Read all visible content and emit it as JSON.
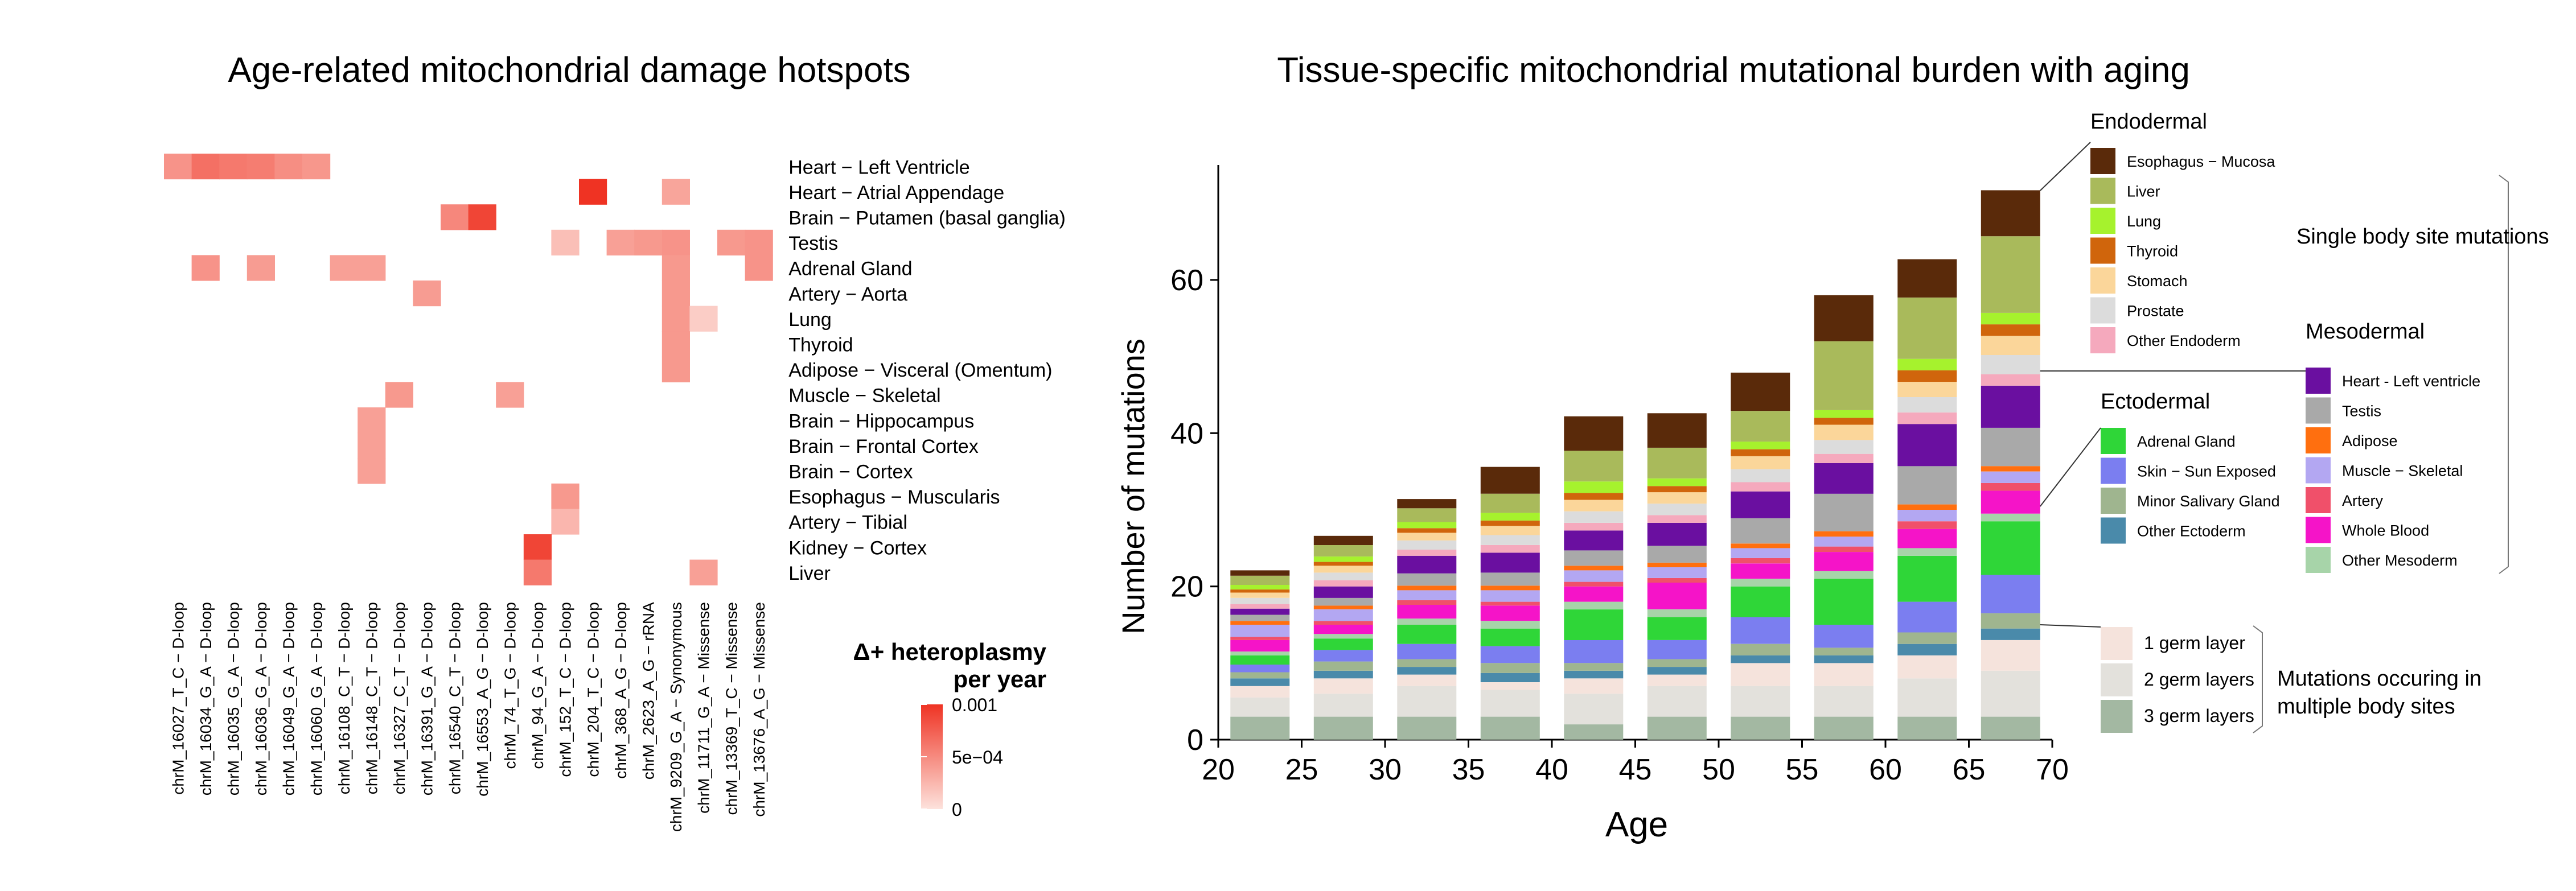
{
  "chart_data": [
    {
      "type": "heatmap",
      "title": "Age-related mitochondrial damage hotspots",
      "rows": [
        "Heart − Left Ventricle",
        "Heart − Atrial Appendage",
        "Brain − Putamen (basal ganglia)",
        "Testis",
        "Adrenal Gland",
        "Artery − Aorta",
        "Lung",
        "Thyroid",
        "Adipose − Visceral (Omentum)",
        "Muscle − Skeletal",
        "Brain − Hippocampus",
        "Brain − Frontal Cortex",
        "Brain − Cortex",
        "Esophagus − Muscularis",
        "Artery − Tibial",
        "Kidney − Cortex",
        "Liver"
      ],
      "columns": [
        "chrM_16027_T_C − D-loop",
        "chrM_16034_G_A − D-loop",
        "chrM_16035_G_A − D-loop",
        "chrM_16036_G_A − D-loop",
        "chrM_16049_G_A − D-loop",
        "chrM_16060_G_A − D-loop",
        "chrM_16108_C_T − D-loop",
        "chrM_16148_C_T − D-loop",
        "chrM_16327_C_T − D-loop",
        "chrM_16391_G_A − D-loop",
        "chrM_16540_C_T − D-loop",
        "chrM_16553_A_G − D-loop",
        "chrM_74_T_G − D-loop",
        "chrM_94_G_A − D-loop",
        "chrM_152_T_C − D-loop",
        "chrM_204_T_C − D-loop",
        "chrM_368_A_G − D-loop",
        "chrM_2623_A_G − rRNA",
        "chrM_9209_G_A − Synonymous",
        "chrM_11711_G_A − Missense",
        "chrM_13369_T_C − Missense",
        "chrM_13676_A_G − Missense"
      ],
      "values": [
        [
          0.00045,
          0.00065,
          0.0006,
          0.00058,
          0.00048,
          0.00043,
          null,
          null,
          null,
          null,
          null,
          null,
          null,
          null,
          null,
          null,
          null,
          null,
          null,
          null,
          null,
          null
        ],
        [
          null,
          null,
          null,
          null,
          null,
          null,
          null,
          null,
          null,
          null,
          null,
          null,
          null,
          null,
          null,
          0.001,
          null,
          null,
          0.00035,
          null,
          null,
          null
        ],
        [
          null,
          null,
          null,
          null,
          null,
          null,
          null,
          null,
          null,
          null,
          0.00052,
          0.0009,
          null,
          null,
          null,
          null,
          null,
          null,
          null,
          null,
          null,
          null
        ],
        [
          null,
          null,
          null,
          null,
          null,
          null,
          null,
          null,
          null,
          null,
          null,
          null,
          null,
          null,
          0.0002,
          null,
          0.00038,
          0.00042,
          0.00045,
          null,
          0.00042,
          0.00045
        ],
        [
          null,
          0.00045,
          null,
          0.0004,
          null,
          null,
          0.00038,
          0.00038,
          null,
          null,
          null,
          null,
          null,
          null,
          null,
          null,
          null,
          null,
          0.00042,
          null,
          null,
          0.00045
        ],
        [
          null,
          null,
          null,
          null,
          null,
          null,
          null,
          null,
          null,
          0.0004,
          null,
          null,
          null,
          null,
          null,
          null,
          null,
          null,
          0.00042,
          null,
          null,
          null
        ],
        [
          null,
          null,
          null,
          null,
          null,
          null,
          null,
          null,
          null,
          null,
          null,
          null,
          null,
          null,
          null,
          null,
          null,
          null,
          0.00042,
          0.00012,
          null,
          null
        ],
        [
          null,
          null,
          null,
          null,
          null,
          null,
          null,
          null,
          null,
          null,
          null,
          null,
          null,
          null,
          null,
          null,
          null,
          null,
          0.00042,
          null,
          null,
          null
        ],
        [
          null,
          null,
          null,
          null,
          null,
          null,
          null,
          null,
          null,
          null,
          null,
          null,
          null,
          null,
          null,
          null,
          null,
          null,
          0.00042,
          null,
          null,
          null
        ],
        [
          null,
          null,
          null,
          null,
          null,
          null,
          null,
          null,
          0.00042,
          null,
          null,
          null,
          0.00038,
          null,
          null,
          null,
          null,
          null,
          null,
          null,
          null,
          null
        ],
        [
          null,
          null,
          null,
          null,
          null,
          null,
          null,
          0.00038,
          null,
          null,
          null,
          null,
          null,
          null,
          null,
          null,
          null,
          null,
          null,
          null,
          null,
          null
        ],
        [
          null,
          null,
          null,
          null,
          null,
          null,
          null,
          0.00038,
          null,
          null,
          null,
          null,
          null,
          null,
          null,
          null,
          null,
          null,
          null,
          null,
          null,
          null
        ],
        [
          null,
          null,
          null,
          null,
          null,
          null,
          null,
          0.00038,
          null,
          null,
          null,
          null,
          null,
          null,
          null,
          null,
          null,
          null,
          null,
          null,
          null,
          null
        ],
        [
          null,
          null,
          null,
          null,
          null,
          null,
          null,
          null,
          null,
          null,
          null,
          null,
          null,
          null,
          0.00042,
          null,
          null,
          null,
          null,
          null,
          null,
          null
        ],
        [
          null,
          null,
          null,
          null,
          null,
          null,
          null,
          null,
          null,
          null,
          null,
          null,
          null,
          null,
          0.00025,
          null,
          null,
          null,
          null,
          null,
          null,
          null
        ],
        [
          null,
          null,
          null,
          null,
          null,
          null,
          null,
          null,
          null,
          null,
          null,
          null,
          null,
          0.0009,
          null,
          null,
          null,
          null,
          null,
          null,
          null,
          null
        ],
        [
          null,
          null,
          null,
          null,
          null,
          null,
          null,
          null,
          null,
          null,
          null,
          null,
          null,
          0.0006,
          null,
          null,
          null,
          null,
          null,
          0.00038,
          null,
          null
        ]
      ],
      "legend": {
        "title": [
          "Δ+ heteroplasmy",
          "per year"
        ],
        "ticks": [
          "0.001",
          "5e−04",
          "0"
        ],
        "tick_values": [
          0.001,
          0.0005,
          0
        ],
        "range": [
          0,
          0.001
        ],
        "colors": [
          "#fde2dc",
          "#ef3323"
        ]
      }
    },
    {
      "type": "bar",
      "stacked": true,
      "title": "Tissue-specific mitochondrial mutational burden with aging",
      "xlabel": "Age",
      "ylabel": "Number of mutations",
      "x": [
        22.5,
        27.5,
        32.5,
        37.5,
        42.5,
        47.5,
        52.5,
        57.5,
        62.5,
        67.5
      ],
      "xticks": [
        "20",
        "25",
        "30",
        "35",
        "40",
        "45",
        "50",
        "55",
        "60",
        "65",
        "70"
      ],
      "xlim": [
        20,
        70
      ],
      "yticks": [
        "0",
        "20",
        "40",
        "60"
      ],
      "ylim": [
        0,
        75
      ],
      "series": [
        {
          "name": "3 germ layers",
          "color": "#a3b8a2",
          "values": [
            3,
            3,
            3,
            3,
            2,
            3,
            3,
            3,
            3,
            3
          ]
        },
        {
          "name": "2 germ layers",
          "color": "#e3e1dc",
          "values": [
            2.5,
            3,
            4,
            3.5,
            4,
            4,
            4,
            4,
            5,
            6
          ]
        },
        {
          "name": "1 germ layer",
          "color": "#f5e3dc",
          "values": [
            1.5,
            2,
            1.5,
            1,
            2,
            1.5,
            3,
            3,
            3,
            4
          ]
        },
        {
          "name": "Other Ectoderm",
          "color": "#4a8aaa",
          "values": [
            1,
            1,
            1,
            1.2,
            1,
            1,
            1,
            1,
            1.5,
            1.5
          ]
        },
        {
          "name": "Minor Salivary Gland",
          "color": "#9fb58f",
          "values": [
            0.8,
            1.2,
            1,
            1.3,
            1,
            1,
            1.5,
            1,
            1.5,
            2
          ]
        },
        {
          "name": "Skin − Sun Exposed",
          "color": "#7b7ef0",
          "values": [
            1,
            1.5,
            2,
            2.2,
            3,
            2.5,
            3.5,
            3,
            4,
            5
          ]
        },
        {
          "name": "Adrenal Gland",
          "color": "#2fd638",
          "values": [
            1.2,
            1.5,
            2.5,
            2.3,
            4,
            3,
            4,
            6,
            6,
            7
          ]
        },
        {
          "name": "Other Mesoderm",
          "color": "#a7d4a9",
          "values": [
            0.5,
            0.6,
            0.8,
            1,
            1,
            1,
            1,
            1,
            1,
            1
          ]
        },
        {
          "name": "Whole Blood",
          "color": "#f514c8",
          "values": [
            1.5,
            1.2,
            1.8,
            2,
            2,
            3.5,
            2,
            2.5,
            2.5,
            3
          ]
        },
        {
          "name": "Artery",
          "color": "#f0506a",
          "values": [
            0.4,
            0.5,
            0.6,
            0.5,
            0.6,
            0.6,
            0.7,
            0.7,
            1,
            1
          ]
        },
        {
          "name": "Muscle − Skeletal",
          "color": "#b3a7f2",
          "values": [
            1.6,
            1.5,
            1.3,
            1.5,
            1.5,
            1.4,
            1.3,
            1.3,
            1.5,
            1.5
          ]
        },
        {
          "name": "Adipose",
          "color": "#ff6f0f",
          "values": [
            0.5,
            0.5,
            0.6,
            0.6,
            0.6,
            0.6,
            0.6,
            0.7,
            0.7,
            0.7
          ]
        },
        {
          "name": "Testis",
          "color": "#a9a9a9",
          "values": [
            0.8,
            1,
            1.6,
            1.7,
            2,
            2.2,
            3.3,
            4.9,
            5,
            5
          ]
        },
        {
          "name": "Heart − Left ventricle",
          "color": "#6a0fa0",
          "values": [
            0.8,
            1.5,
            2.3,
            2.6,
            2.6,
            3,
            3.5,
            4,
            5.5,
            5.5
          ]
        },
        {
          "name": "Other Endoderm",
          "color": "#f5a9bd",
          "values": [
            0.6,
            0.8,
            0.8,
            1,
            1,
            1,
            1.2,
            1.2,
            1.5,
            1.5
          ]
        },
        {
          "name": "Prostate",
          "color": "#dcdcdc",
          "values": [
            0.8,
            1,
            1.2,
            1.3,
            1.5,
            1.5,
            1.7,
            1.8,
            2,
            2.5
          ]
        },
        {
          "name": "Stomach",
          "color": "#fbd69a",
          "values": [
            0.7,
            0.9,
            1,
            1.2,
            1.5,
            1.5,
            1.7,
            2,
            2,
            2.5
          ]
        },
        {
          "name": "Thyroid",
          "color": "#d0650c",
          "values": [
            0.4,
            0.5,
            0.6,
            0.7,
            0.9,
            0.8,
            0.9,
            0.9,
            1.5,
            1.5
          ]
        },
        {
          "name": "Lung",
          "color": "#a6f22d",
          "values": [
            0.6,
            0.7,
            0.8,
            1,
            1.5,
            1,
            1,
            1,
            1.5,
            1.5
          ]
        },
        {
          "name": "Liver",
          "color": "#a9ba5b",
          "values": [
            1.2,
            1.5,
            1.8,
            2.5,
            4,
            4,
            4,
            9,
            8,
            10
          ]
        },
        {
          "name": "Esophagus − Mucosa",
          "color": "#5a2a0a",
          "values": [
            0.7,
            1.2,
            1.2,
            3.5,
            4.5,
            4.5,
            5,
            6,
            5,
            6
          ]
        }
      ],
      "legend_groups": [
        {
          "title": "Endodermal",
          "items": [
            "Esophagus − Mucosa",
            "Liver",
            "Lung",
            "Thyroid",
            "Stomach",
            "Prostate",
            "Other Endoderm"
          ]
        },
        {
          "title": "Mesodermal",
          "items": [
            "Heart - Left ventricle",
            "Testis",
            "Adipose",
            "Muscle − Skeletal",
            "Artery",
            "Whole Blood",
            "Other Mesoderm"
          ]
        },
        {
          "title": "Ectodermal",
          "items": [
            "Adrenal Gland",
            "Skin − Sun Exposed",
            "Minor Salivary Gland",
            "Other Ectoderm"
          ]
        },
        {
          "title": "",
          "items": [
            "1 germ layer",
            "2 germ layers",
            "3 germ layers"
          ]
        }
      ],
      "annotations": [
        "Single body site mutations",
        "Mutations occuring in",
        "multiple body sites"
      ]
    }
  ]
}
